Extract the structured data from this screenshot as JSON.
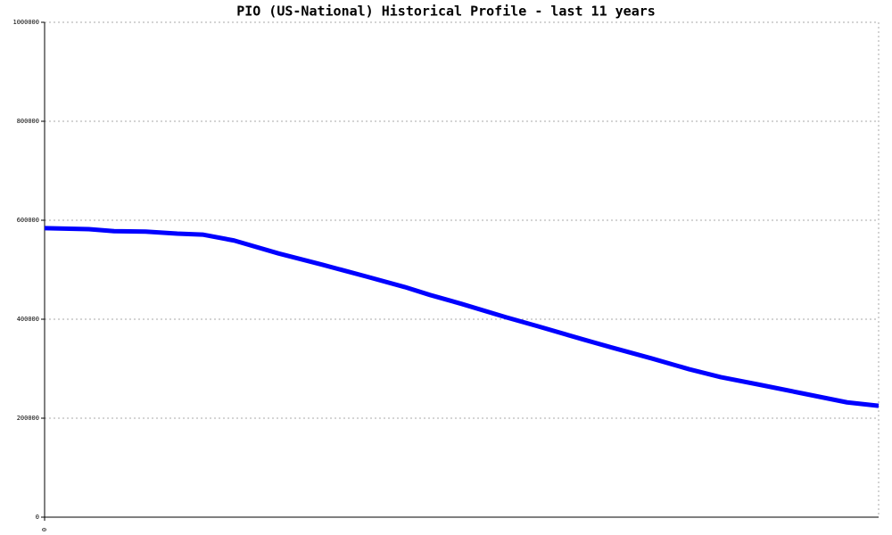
{
  "chart_data": {
    "type": "line",
    "title": "PIO (US-National) Historical Profile - last 11 years",
    "x": [
      0,
      7,
      11,
      16,
      21,
      25,
      30,
      37,
      44,
      51,
      57,
      61,
      66,
      73,
      78,
      85,
      90,
      96,
      102,
      107,
      113,
      120,
      127,
      132
    ],
    "series": [
      {
        "color": "#0000ff",
        "values": [
          584000,
          582000,
          578000,
          577000,
          573000,
          571000,
          559000,
          533000,
          510000,
          486000,
          465000,
          449000,
          431000,
          404000,
          386000,
          360000,
          342000,
          321000,
          299000,
          283000,
          268000,
          250000,
          232000,
          225000
        ]
      }
    ],
    "xlim": [
      0,
      132
    ],
    "xticks": [
      0
    ],
    "ylim": [
      0,
      1000000
    ],
    "yticks": [
      0,
      200000,
      400000,
      600000,
      800000,
      1000000
    ],
    "grid": true
  }
}
